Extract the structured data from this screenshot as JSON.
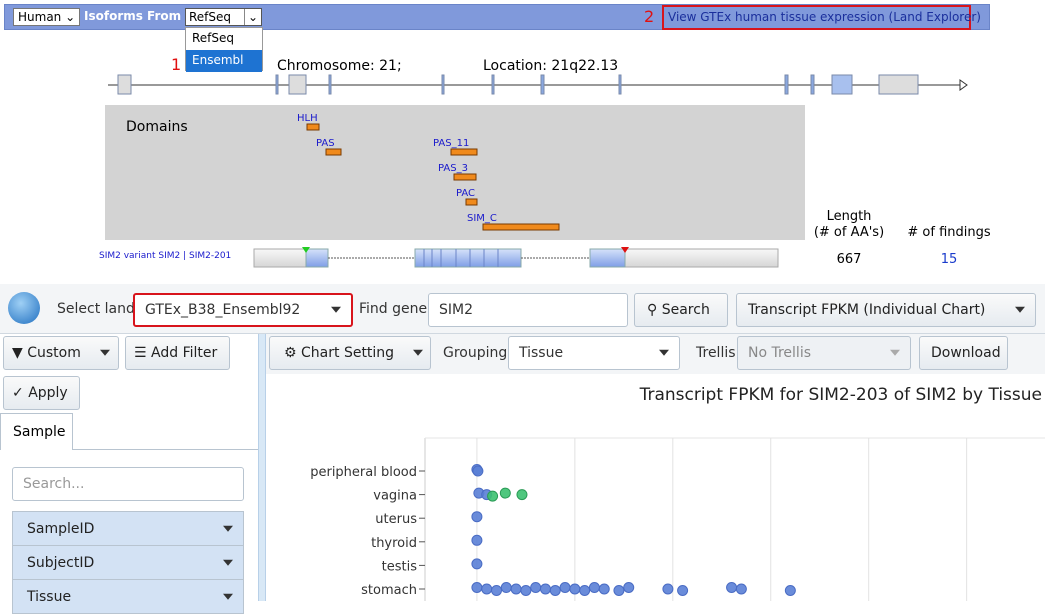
{
  "header": {
    "species": "Human",
    "isoforms_label": "Isoforms From",
    "isoform_source": "RefSeq",
    "dropdown_options": [
      "RefSeq",
      "Ensembl"
    ],
    "marker_1": "1",
    "marker_2": "2",
    "gtex_link": "View GTEx human tissue expression (Land Explorer)"
  },
  "gene_view": {
    "chromosome": "Chromosome: 21;",
    "location": "Location: 21q22.13",
    "domains_title": "Domains",
    "domains": [
      "HLH",
      "PAS",
      "PAS_11",
      "PAS_3",
      "PAC",
      "SIM_C"
    ],
    "length_header": [
      "Length",
      "(# of AA's)"
    ],
    "findings_header": "# of findings",
    "variant": "SIM2 variant SIM2 | SIM2-201",
    "length": "667",
    "findings": "15"
  },
  "toolbar": {
    "select_land_label": "Select land",
    "land": "GTEx_B38_Ensembl92",
    "find_gene_label": "Find gene",
    "gene": "SIM2",
    "search_button": "Search",
    "view": "Transcript FPKM (Individual Chart)"
  },
  "left_panel": {
    "custom": "Custom",
    "add_filter": "Add Filter",
    "apply": "Apply",
    "tab": "Sample",
    "search_placeholder": "Search...",
    "fields": [
      "SampleID",
      "SubjectID",
      "Tissue"
    ]
  },
  "chart_toolbar": {
    "chart_setting": "Chart Setting",
    "grouping_label": "Grouping",
    "grouping": "Tissue",
    "trellis_label": "Trellis",
    "trellis": "No Trellis",
    "download": "Download"
  },
  "fpkm_chart": {
    "title": "Transcript FPKM for SIM2-203 of SIM2 by Tissue",
    "categories": [
      "peripheral blood",
      "vagina",
      "uterus",
      "thyroid",
      "testis",
      "stomach"
    ],
    "values": [
      [
        0,
        0.01
      ],
      [
        0.02,
        0.1,
        0.16,
        0.29,
        0.46
      ],
      [
        0
      ],
      [
        0
      ],
      [
        0
      ],
      [
        0,
        0.1,
        0.2,
        0.3,
        0.4,
        0.5,
        0.6,
        0.7,
        0.8,
        0.9,
        1,
        1.1,
        1.2,
        1.3,
        1.45,
        1.55,
        1.95,
        2.1,
        2.6,
        2.7,
        3.2
      ]
    ],
    "xlim": [
      -0.53,
      5.8
    ],
    "xgrid": [
      0,
      1,
      2,
      3,
      4,
      5
    ]
  }
}
